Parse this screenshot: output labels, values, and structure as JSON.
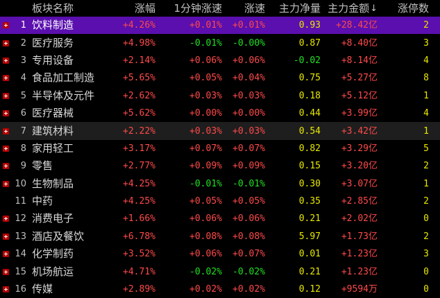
{
  "headers": {
    "name": "板块名称",
    "change": "涨幅",
    "speed_1m": "1分钟涨速",
    "speed": "涨速",
    "net_inflow": "主力净量",
    "main_amount": "主力金额",
    "limit_up": "涨停数"
  },
  "sort_icon": "arrow-down-icon",
  "rows": [
    {
      "idx": "1",
      "name": "饮料制造",
      "change": "+4.26%",
      "speed_1m": "+0.01%",
      "speed": "+0.01%",
      "net_inflow": "0.93",
      "main_amount": "+28.42亿",
      "limit_up": "2"
    },
    {
      "idx": "2",
      "name": "医疗服务",
      "change": "+4.98%",
      "speed_1m": "-0.01%",
      "speed": "-0.00%",
      "net_inflow": "0.87",
      "main_amount": "+8.40亿",
      "limit_up": "3"
    },
    {
      "idx": "3",
      "name": "专用设备",
      "change": "+2.14%",
      "speed_1m": "+0.06%",
      "speed": "+0.06%",
      "net_inflow": "-0.02",
      "main_amount": "+8.14亿",
      "limit_up": "4"
    },
    {
      "idx": "4",
      "name": "食品加工制造",
      "change": "+5.65%",
      "speed_1m": "+0.05%",
      "speed": "+0.04%",
      "net_inflow": "0.75",
      "main_amount": "+5.27亿",
      "limit_up": "8"
    },
    {
      "idx": "5",
      "name": "半导体及元件",
      "change": "+2.62%",
      "speed_1m": "+0.03%",
      "speed": "+0.03%",
      "net_inflow": "0.18",
      "main_amount": "+5.12亿",
      "limit_up": "1"
    },
    {
      "idx": "6",
      "name": "医疗器械",
      "change": "+5.62%",
      "speed_1m": "+0.00%",
      "speed": "+0.00%",
      "net_inflow": "0.44",
      "main_amount": "+3.99亿",
      "limit_up": "4"
    },
    {
      "idx": "7",
      "name": "建筑材料",
      "change": "+2.22%",
      "speed_1m": "+0.03%",
      "speed": "+0.03%",
      "net_inflow": "0.54",
      "main_amount": "+3.42亿",
      "limit_up": "1"
    },
    {
      "idx": "8",
      "name": "家用轻工",
      "change": "+3.17%",
      "speed_1m": "+0.07%",
      "speed": "+0.07%",
      "net_inflow": "0.82",
      "main_amount": "+3.29亿",
      "limit_up": "5"
    },
    {
      "idx": "9",
      "name": "零售",
      "change": "+2.77%",
      "speed_1m": "+0.09%",
      "speed": "+0.09%",
      "net_inflow": "0.15",
      "main_amount": "+3.20亿",
      "limit_up": "2"
    },
    {
      "idx": "10",
      "name": "生物制品",
      "change": "+4.25%",
      "speed_1m": "-0.01%",
      "speed": "-0.01%",
      "net_inflow": "0.30",
      "main_amount": "+3.07亿",
      "limit_up": "1"
    },
    {
      "idx": "11",
      "name": "中药",
      "change": "+4.25%",
      "speed_1m": "+0.05%",
      "speed": "+0.05%",
      "net_inflow": "0.35",
      "main_amount": "+2.85亿",
      "limit_up": "2"
    },
    {
      "idx": "12",
      "name": "消费电子",
      "change": "+1.66%",
      "speed_1m": "+0.06%",
      "speed": "+0.06%",
      "net_inflow": "0.21",
      "main_amount": "+2.02亿",
      "limit_up": "0"
    },
    {
      "idx": "13",
      "name": "酒店及餐饮",
      "change": "+6.78%",
      "speed_1m": "+0.08%",
      "speed": "+0.08%",
      "net_inflow": "5.97",
      "main_amount": "+1.73亿",
      "limit_up": "2"
    },
    {
      "idx": "14",
      "name": "化学制药",
      "change": "+3.52%",
      "speed_1m": "+0.06%",
      "speed": "+0.07%",
      "net_inflow": "0.01",
      "main_amount": "+1.23亿",
      "limit_up": "3"
    },
    {
      "idx": "15",
      "name": "机场航运",
      "change": "+4.71%",
      "speed_1m": "-0.02%",
      "speed": "-0.02%",
      "net_inflow": "0.21",
      "main_amount": "+1.23亿",
      "limit_up": "0"
    },
    {
      "idx": "16",
      "name": "传媒",
      "change": "+2.89%",
      "speed_1m": "+0.02%",
      "speed": "+0.02%",
      "net_inflow": "0.12",
      "main_amount": "+9594万",
      "limit_up": "0"
    }
  ],
  "row_markers": [
    true,
    true,
    true,
    true,
    true,
    true,
    true,
    true,
    true,
    true,
    false,
    true,
    true,
    true,
    true,
    true
  ],
  "colors": {
    "positive": "#ff4a4a",
    "negative": "#22e022",
    "neutral": "#e6e6e6",
    "limit_up": "#e8e800",
    "selected_row": "#5a0fae",
    "hover_row": "#1e1e1e",
    "marker": "#b80000"
  },
  "selected_row_index": 1,
  "hover_row_index": 7
}
